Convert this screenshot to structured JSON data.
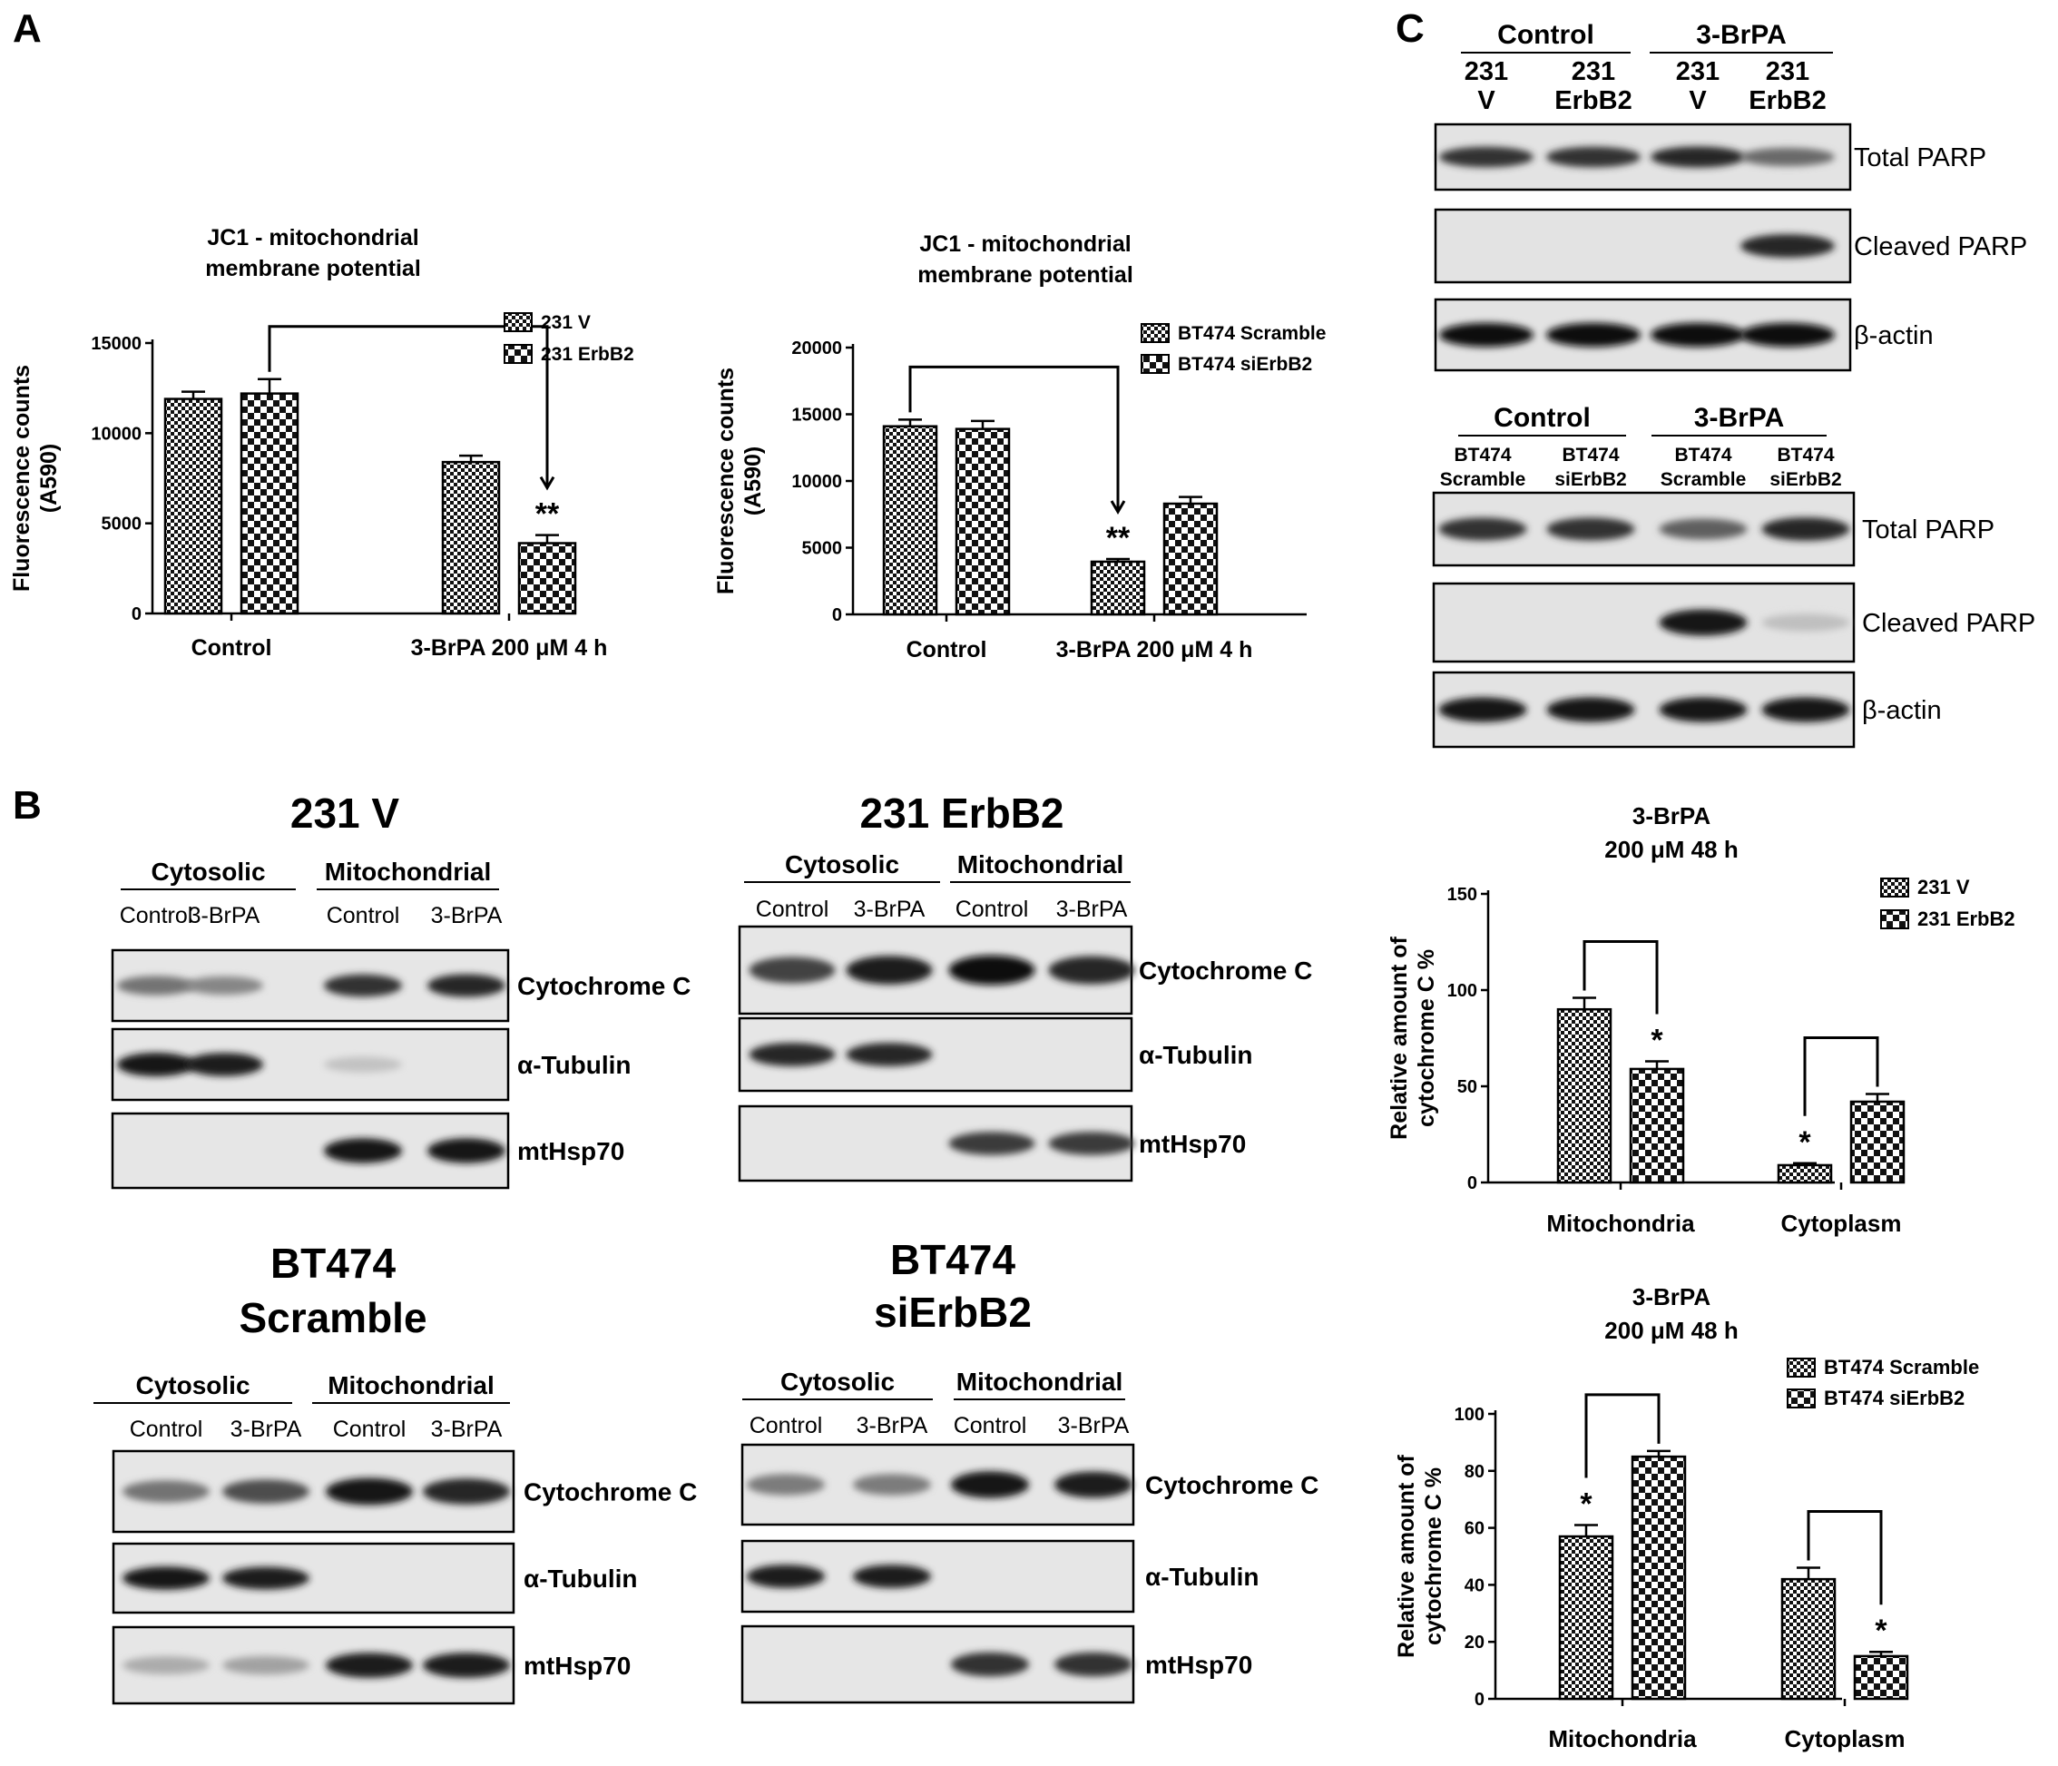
{
  "panels": {
    "a": "A",
    "b": "B",
    "c": "C"
  },
  "patterns": {
    "dense": "dense-checker-pattern",
    "coarse": "coarse-checker-pattern"
  },
  "chart_data": [
    {
      "type": "bar",
      "title": "JC1 - mitochondrial membrane potential",
      "title_lines": [
        "JC1 - mitochondrial",
        "membrane potential"
      ],
      "ylabel_lines": [
        "Fluorescence counts",
        "(A590)"
      ],
      "ylim": [
        0,
        15000
      ],
      "yticks": [
        0,
        5000,
        10000,
        15000
      ],
      "categories": [
        "Control",
        "3-BrPA 200 μM 4 h"
      ],
      "series": [
        {
          "name": "231 V",
          "pattern": "dense",
          "values": [
            11900,
            8400
          ],
          "errors": [
            400,
            350
          ]
        },
        {
          "name": "231 ErbB2",
          "pattern": "coarse",
          "values": [
            12200,
            3900
          ],
          "errors": [
            800,
            450
          ]
        }
      ],
      "annotations": [
        {
          "text": "**",
          "series": 1,
          "category": 1
        }
      ],
      "bracket": {
        "from": [
          1,
          0
        ],
        "to": [
          1,
          1
        ],
        "arrow": true
      },
      "legend_position": "top-right"
    },
    {
      "type": "bar",
      "title": "JC1 - mitochondrial membrane potential",
      "title_lines": [
        "JC1 - mitochondrial",
        "membrane potential"
      ],
      "ylabel_lines": [
        "Fluorescence counts",
        "(A590)"
      ],
      "ylim": [
        0,
        20000
      ],
      "yticks": [
        0,
        5000,
        10000,
        15000,
        20000
      ],
      "categories": [
        "Control",
        "3-BrPA 200 μM 4 h"
      ],
      "series": [
        {
          "name": "BT474 Scramble",
          "pattern": "dense",
          "values": [
            14100,
            3950
          ],
          "errors": [
            500,
            200
          ]
        },
        {
          "name": "BT474 siErbB2",
          "pattern": "coarse",
          "values": [
            13900,
            8300
          ],
          "errors": [
            600,
            500
          ]
        }
      ],
      "annotations": [
        {
          "text": "**",
          "series": 0,
          "category": 1
        }
      ],
      "bracket": {
        "from": [
          0,
          0
        ],
        "to": [
          0,
          1
        ],
        "arrow": true
      },
      "legend_position": "top-right"
    },
    {
      "type": "bar",
      "title": "3-BrPA 200 μM 48 h",
      "title_lines": [
        "3-BrPA",
        "200 μM 48 h"
      ],
      "ylabel_lines": [
        "Relative amount of",
        "cytochrome C %"
      ],
      "ylim": [
        0,
        150
      ],
      "yticks": [
        0,
        50,
        100,
        150
      ],
      "categories": [
        "Mitochondria",
        "Cytoplasm"
      ],
      "series": [
        {
          "name": "231 V",
          "pattern": "dense",
          "values": [
            90,
            9
          ],
          "errors": [
            6,
            1
          ]
        },
        {
          "name": "231 ErbB2",
          "pattern": "coarse",
          "values": [
            59,
            42
          ],
          "errors": [
            4,
            4
          ]
        }
      ],
      "annotations": [
        {
          "text": "*",
          "series": 1,
          "category": 0
        },
        {
          "text": "*",
          "series": 0,
          "category": 1
        }
      ],
      "brackets": [
        {
          "category": 0,
          "arrow": true
        },
        {
          "category": 1,
          "arrow": true
        }
      ],
      "legend_position": "top-right"
    },
    {
      "type": "bar",
      "title": "3-BrPA 200 μM 48 h",
      "title_lines": [
        "3-BrPA",
        "200 μM 48 h"
      ],
      "ylabel_lines": [
        "Relative amount of",
        "cytochrome C %"
      ],
      "ylim": [
        0,
        100
      ],
      "yticks": [
        0,
        20,
        40,
        60,
        80,
        100
      ],
      "categories": [
        "Mitochondria",
        "Cytoplasm"
      ],
      "series": [
        {
          "name": "BT474 Scramble",
          "pattern": "dense",
          "values": [
            57,
            42
          ],
          "errors": [
            4,
            4
          ]
        },
        {
          "name": "BT474 siErbB2",
          "pattern": "coarse",
          "values": [
            85,
            15
          ],
          "errors": [
            2,
            1.5
          ]
        }
      ],
      "annotations": [
        {
          "text": "*",
          "series": 0,
          "category": 0
        },
        {
          "text": "*",
          "series": 1,
          "category": 1
        }
      ],
      "brackets": [
        {
          "category": 0,
          "arrow": true
        },
        {
          "category": 1,
          "arrow": true
        }
      ],
      "legend_position": "top-right"
    }
  ],
  "panel_b_blots": [
    {
      "title_lines": [
        "231 V"
      ],
      "groups": [
        "Cytosolic",
        "Mitochondrial"
      ],
      "lanes": [
        "Control",
        "3-BrPA",
        "Control",
        "3-BrPA"
      ],
      "rows": [
        {
          "label": "Cytochrome C",
          "intensity": [
            0.45,
            0.35,
            0.8,
            0.85
          ]
        },
        {
          "label": "α-Tubulin",
          "intensity": [
            0.95,
            0.9,
            0.03,
            0
          ]
        },
        {
          "label": "mtHsp70",
          "intensity": [
            0,
            0,
            0.95,
            0.95
          ]
        }
      ]
    },
    {
      "title_lines": [
        "231 ErbB2"
      ],
      "groups": [
        "Cytosolic",
        "Mitochondrial"
      ],
      "lanes": [
        "Control",
        "3-BrPA",
        "Control",
        "3-BrPA"
      ],
      "rows": [
        {
          "label": "Cytochrome C",
          "intensity": [
            0.7,
            0.9,
            1.0,
            0.85
          ]
        },
        {
          "label": "α-Tubulin",
          "intensity": [
            0.85,
            0.85,
            0,
            0
          ]
        },
        {
          "label": "mtHsp70",
          "intensity": [
            0,
            0,
            0.75,
            0.75
          ]
        }
      ]
    },
    {
      "title_lines": [
        "BT474",
        "Scramble"
      ],
      "groups": [
        "Cytosolic",
        "Mitochondrial"
      ],
      "lanes": [
        "Control",
        "3-BrPA",
        "Control",
        "3-BrPA"
      ],
      "rows": [
        {
          "label": "Cytochrome C",
          "intensity": [
            0.45,
            0.65,
            0.95,
            0.85
          ]
        },
        {
          "label": "α-Tubulin",
          "intensity": [
            0.95,
            0.9,
            0,
            0
          ]
        },
        {
          "label": "mtHsp70",
          "intensity": [
            0.15,
            0.2,
            0.9,
            0.9
          ]
        }
      ]
    },
    {
      "title_lines": [
        "BT474",
        "siErbB2"
      ],
      "groups": [
        "Cytosolic",
        "Mitochondrial"
      ],
      "lanes": [
        "Control",
        "3-BrPA",
        "Control",
        "3-BrPA"
      ],
      "rows": [
        {
          "label": "Cytochrome C",
          "intensity": [
            0.4,
            0.4,
            0.95,
            0.9
          ]
        },
        {
          "label": "α-Tubulin",
          "intensity": [
            0.9,
            0.9,
            0,
            0
          ]
        },
        {
          "label": "mtHsp70",
          "intensity": [
            0,
            0,
            0.8,
            0.8
          ]
        }
      ]
    }
  ],
  "panel_c_blots": [
    {
      "groups": [
        "Control",
        "3-BrPA"
      ],
      "lanes": [
        [
          "231",
          "V"
        ],
        [
          "231",
          "ErbB2"
        ],
        [
          "231",
          "V"
        ],
        [
          "231",
          "ErbB2"
        ]
      ],
      "rows": [
        {
          "label": "Total PARP",
          "intensity": [
            0.8,
            0.8,
            0.85,
            0.5
          ]
        },
        {
          "label": "Cleaved PARP",
          "intensity": [
            0,
            0,
            0,
            0.85
          ]
        },
        {
          "label": "β-actin",
          "intensity": [
            1.0,
            1.0,
            1.0,
            1.0
          ]
        }
      ]
    },
    {
      "groups": [
        "Control",
        "3-BrPA"
      ],
      "lanes": [
        [
          "BT474",
          "Scramble"
        ],
        [
          "BT474",
          "siErbB2"
        ],
        [
          "BT474",
          "Scramble"
        ],
        [
          "BT474",
          "siErbB2"
        ]
      ],
      "rows": [
        {
          "label": "Total PARP",
          "intensity": [
            0.8,
            0.8,
            0.55,
            0.85
          ]
        },
        {
          "label": "Cleaved PARP",
          "intensity": [
            0,
            0,
            0.95,
            0.05
          ]
        },
        {
          "label": "β-actin",
          "intensity": [
            0.95,
            0.95,
            0.95,
            0.95
          ]
        }
      ]
    }
  ]
}
